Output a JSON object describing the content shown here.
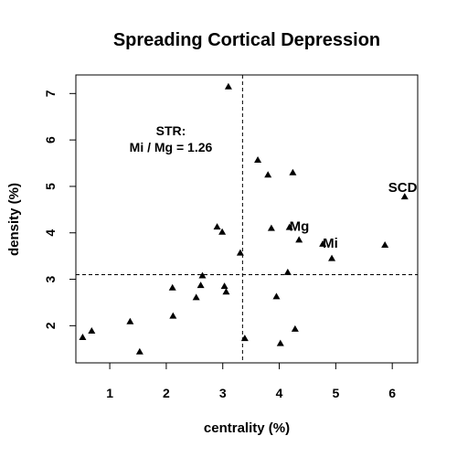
{
  "chart_data": {
    "type": "scatter",
    "title": "Spreading Cortical Depression",
    "xlabel": "centrality (%)",
    "ylabel": "density (%)",
    "xlim": [
      0.4,
      6.45
    ],
    "ylim": [
      1.2,
      7.4
    ],
    "xticks": [
      1,
      2,
      3,
      4,
      5,
      6
    ],
    "yticks": [
      2,
      3,
      4,
      5,
      6,
      7
    ],
    "grid": false,
    "marker": "filled-triangle",
    "reference_lines": {
      "x": 3.35,
      "y": 3.1
    },
    "annotation": {
      "lines": [
        "STR:",
        "Mi / Mg = 1.26"
      ]
    },
    "labeled_points": [
      {
        "label": "SCD",
        "x": 6.22,
        "y": 4.78
      },
      {
        "label": "Mg",
        "x": 4.18,
        "y": 4.12
      },
      {
        "label": "Mi",
        "x": 4.77,
        "y": 3.76
      }
    ],
    "points": [
      {
        "x": 0.52,
        "y": 1.75
      },
      {
        "x": 0.68,
        "y": 1.89
      },
      {
        "x": 1.36,
        "y": 2.09
      },
      {
        "x": 1.53,
        "y": 1.44
      },
      {
        "x": 2.11,
        "y": 2.82
      },
      {
        "x": 2.12,
        "y": 2.21
      },
      {
        "x": 2.53,
        "y": 2.61
      },
      {
        "x": 2.61,
        "y": 2.87
      },
      {
        "x": 2.64,
        "y": 3.08
      },
      {
        "x": 2.9,
        "y": 4.13
      },
      {
        "x": 2.99,
        "y": 4.02
      },
      {
        "x": 3.03,
        "y": 2.85
      },
      {
        "x": 3.06,
        "y": 2.73
      },
      {
        "x": 3.1,
        "y": 7.15
      },
      {
        "x": 3.31,
        "y": 3.57
      },
      {
        "x": 3.39,
        "y": 1.73
      },
      {
        "x": 3.62,
        "y": 5.57
      },
      {
        "x": 3.8,
        "y": 5.25
      },
      {
        "x": 3.86,
        "y": 4.1
      },
      {
        "x": 3.95,
        "y": 2.63
      },
      {
        "x": 4.02,
        "y": 1.62
      },
      {
        "x": 4.15,
        "y": 3.15
      },
      {
        "x": 4.18,
        "y": 4.12
      },
      {
        "x": 4.24,
        "y": 5.3
      },
      {
        "x": 4.28,
        "y": 1.93
      },
      {
        "x": 4.35,
        "y": 3.85
      },
      {
        "x": 4.77,
        "y": 3.76
      },
      {
        "x": 4.93,
        "y": 3.45
      },
      {
        "x": 5.87,
        "y": 3.74
      },
      {
        "x": 6.22,
        "y": 4.78
      }
    ]
  }
}
